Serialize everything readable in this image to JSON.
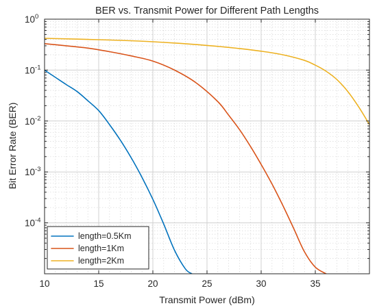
{
  "chart_data": {
    "type": "line",
    "title": "BER vs. Transmit Power for Different Path Lengths",
    "xlabel": "Transmit Power (dBm)",
    "ylabel": "Bit Error Rate (BER)",
    "xlim": [
      10,
      40
    ],
    "ylim": [
      1e-05,
      1
    ],
    "yscale": "log",
    "grid": true,
    "legend_position": "bottom-left",
    "x_ticks": [
      10,
      15,
      20,
      25,
      30,
      35
    ],
    "y_ticks": [
      {
        "value": 1,
        "base": "10",
        "exp": "0"
      },
      {
        "value": 0.1,
        "base": "10",
        "exp": "-1"
      },
      {
        "value": 0.01,
        "base": "10",
        "exp": "-2"
      },
      {
        "value": 0.001,
        "base": "10",
        "exp": "-3"
      },
      {
        "value": 0.0001,
        "base": "10",
        "exp": "-4"
      }
    ],
    "series": [
      {
        "name": "length=0.5Km",
        "color": "#0072BD",
        "x": [
          10,
          11,
          12,
          13,
          14,
          15,
          16,
          17,
          18,
          19,
          20,
          21,
          22,
          23,
          23.6
        ],
        "y": [
          0.1,
          0.072,
          0.052,
          0.038,
          0.025,
          0.016,
          0.0085,
          0.0042,
          0.0019,
          0.00078,
          0.00029,
          9.5e-05,
          2.9e-05,
          1.25e-05,
          1e-05
        ]
      },
      {
        "name": "length=1Km",
        "color": "#D95319",
        "x": [
          10,
          12,
          14,
          16,
          18,
          20,
          22,
          24,
          26,
          27,
          28,
          29,
          30,
          31,
          32,
          33,
          34,
          35,
          36
        ],
        "y": [
          0.33,
          0.3,
          0.27,
          0.23,
          0.19,
          0.15,
          0.1,
          0.056,
          0.024,
          0.013,
          0.0068,
          0.0032,
          0.0014,
          0.00058,
          0.00022,
          7.8e-05,
          2.7e-05,
          1.35e-05,
          1e-05
        ]
      },
      {
        "name": "length=2Km",
        "color": "#EDB120",
        "x": [
          10,
          15,
          20,
          25,
          28,
          30,
          32,
          34,
          35,
          36,
          37,
          38,
          39,
          40
        ],
        "y": [
          0.42,
          0.395,
          0.36,
          0.305,
          0.265,
          0.235,
          0.2,
          0.155,
          0.125,
          0.095,
          0.065,
          0.038,
          0.019,
          0.0085
        ]
      }
    ]
  }
}
